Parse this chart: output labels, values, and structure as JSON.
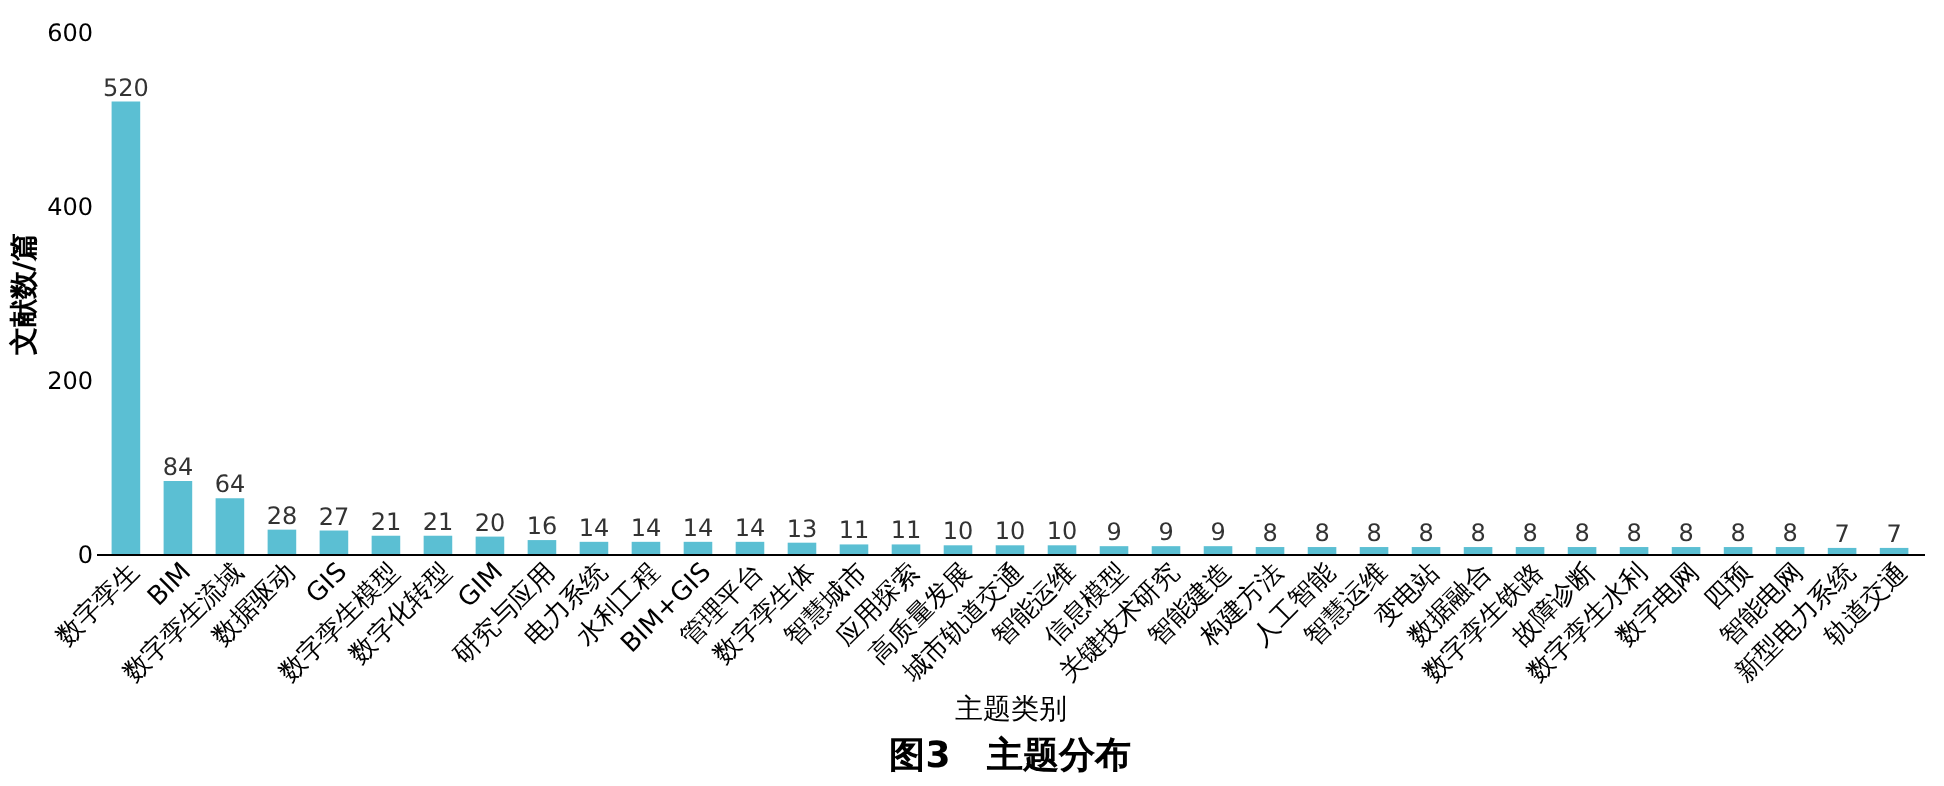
{
  "chart_data": {
    "type": "bar",
    "title": "图3　主题分布",
    "xlabel": "主题类别",
    "ylabel": "文献数/篇",
    "categories": [
      "数字孪生",
      "BIM",
      "数字孪生流域",
      "数据驱动",
      "GIS",
      "数字孪生模型",
      "数字化转型",
      "GIM",
      "研究与应用",
      "电力系统",
      "水利工程",
      "BIM+GIS",
      "管理平台",
      "数字孪生体",
      "智慧城市",
      "应用探索",
      "高质量发展",
      "城市轨道交通",
      "智能运维",
      "信息模型",
      "关键技术研究",
      "智能建造",
      "构建方法",
      "人工智能",
      "智慧运维",
      "变电站",
      "数据融合",
      "数字孪生铁路",
      "故障诊断",
      "数字孪生水利",
      "数字电网",
      "四预",
      "智能电网",
      "新型电力系统",
      "轨道交通"
    ],
    "values": [
      520,
      84,
      64,
      28,
      27,
      21,
      21,
      20,
      16,
      14,
      14,
      14,
      14,
      13,
      11,
      11,
      10,
      10,
      10,
      9,
      9,
      9,
      8,
      8,
      8,
      8,
      8,
      8,
      8,
      8,
      8,
      8,
      8,
      7,
      7
    ],
    "color": "#5bbfd3",
    "ylim": [
      0,
      600
    ],
    "yticks": [
      0,
      200,
      400,
      600
    ],
    "grid": false,
    "data_labels": true
  }
}
